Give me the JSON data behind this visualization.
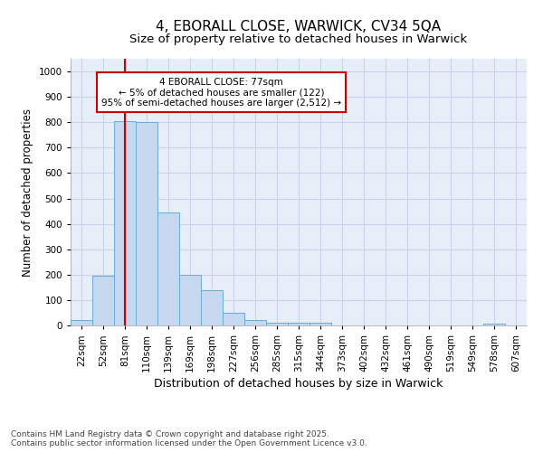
{
  "title": "4, EBORALL CLOSE, WARWICK, CV34 5QA",
  "subtitle": "Size of property relative to detached houses in Warwick",
  "xlabel": "Distribution of detached houses by size in Warwick",
  "ylabel": "Number of detached properties",
  "categories": [
    "22sqm",
    "52sqm",
    "81sqm",
    "110sqm",
    "139sqm",
    "169sqm",
    "198sqm",
    "227sqm",
    "256sqm",
    "285sqm",
    "315sqm",
    "344sqm",
    "373sqm",
    "402sqm",
    "432sqm",
    "461sqm",
    "490sqm",
    "519sqm",
    "549sqm",
    "578sqm",
    "607sqm"
  ],
  "values": [
    20,
    195,
    805,
    800,
    445,
    200,
    140,
    50,
    20,
    10,
    10,
    10,
    0,
    0,
    0,
    0,
    0,
    0,
    0,
    8,
    0
  ],
  "bar_color": "#c5d8f0",
  "bar_edge_color": "#6aaad4",
  "vline_x_index": 2,
  "vline_color": "#cc0000",
  "annotation_text": "4 EBORALL CLOSE: 77sqm\n← 5% of detached houses are smaller (122)\n95% of semi-detached houses are larger (2,512) →",
  "annotation_box_facecolor": "#ffffff",
  "annotation_box_edgecolor": "#cc0000",
  "ylim": [
    0,
    1050
  ],
  "yticks": [
    0,
    100,
    200,
    300,
    400,
    500,
    600,
    700,
    800,
    900,
    1000
  ],
  "grid_color": "#c8d4e8",
  "background_color": "#e8eef8",
  "footer_text": "Contains HM Land Registry data © Crown copyright and database right 2025.\nContains public sector information licensed under the Open Government Licence v3.0.",
  "title_fontsize": 11,
  "subtitle_fontsize": 9.5,
  "ylabel_fontsize": 8.5,
  "xlabel_fontsize": 9,
  "tick_fontsize": 7.5,
  "footer_fontsize": 6.5
}
